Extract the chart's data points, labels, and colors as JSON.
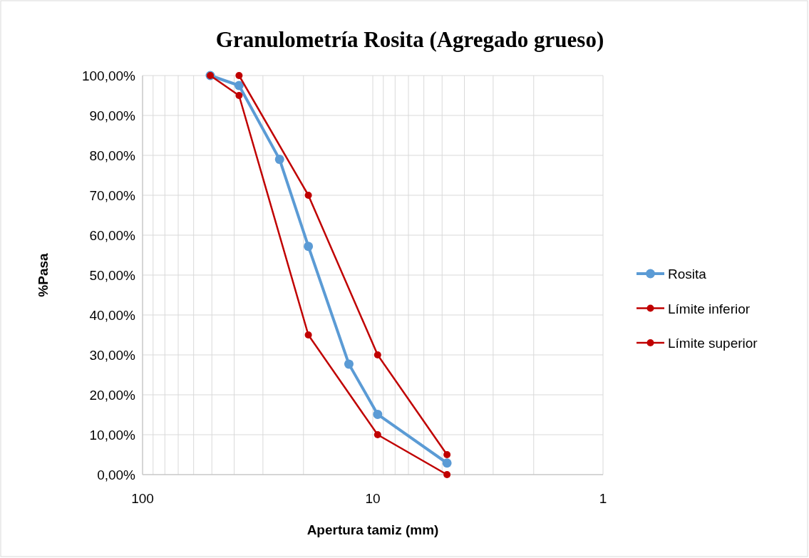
{
  "chart_data": {
    "type": "line",
    "title": "Granulometría Rosita (Agregado grueso)",
    "xlabel": "Apertura tamiz (mm)",
    "ylabel": "%Pasa",
    "log": "x",
    "xlim": [
      100,
      1
    ],
    "xticks": [
      100,
      {
        "value": 90,
        "label": null
      },
      {
        "value": 80,
        "label": null
      },
      {
        "value": 70,
        "label": null
      },
      {
        "value": 60,
        "label": null
      },
      {
        "value": 50,
        "label": null
      },
      {
        "value": 40,
        "label": null
      },
      {
        "value": 30,
        "label": null
      },
      {
        "value": 20,
        "label": null
      },
      10,
      {
        "value": 9,
        "label": null
      },
      {
        "value": 8,
        "label": null
      },
      {
        "value": 7,
        "label": null
      },
      {
        "value": 6,
        "label": null
      },
      {
        "value": 5,
        "label": null
      },
      {
        "value": 4,
        "label": null
      },
      {
        "value": 3,
        "label": null
      },
      {
        "value": 2,
        "label": null
      },
      1
    ],
    "ylim": [
      0,
      100
    ],
    "yticks": [
      {
        "value": 0,
        "label": "0,00%"
      },
      {
        "value": 10,
        "label": "10,00%"
      },
      {
        "value": 20,
        "label": "20,00%"
      },
      {
        "value": 30,
        "label": "30,00%"
      },
      {
        "value": 40,
        "label": "40,00%"
      },
      {
        "value": 50,
        "label": "50,00%"
      },
      {
        "value": 60,
        "label": "60,00%"
      },
      {
        "value": 70,
        "label": "70,00%"
      },
      {
        "value": 80,
        "label": "80,00%"
      },
      {
        "value": 90,
        "label": "90,00%"
      },
      {
        "value": 100,
        "label": "100,00%"
      }
    ],
    "grid": true,
    "legend": "right",
    "marker": "circle",
    "line_style": "solid",
    "series": [
      {
        "name": "Rosita",
        "color": "#5b9bd5",
        "x": [
          50.8,
          38.1,
          25.4,
          19.05,
          12.7,
          9.525,
          4.76
        ],
        "values": [
          100,
          97.5,
          79,
          57.2,
          27.7,
          15.1,
          2.9
        ]
      },
      {
        "name": "Límite inferior",
        "color": "#c00000",
        "x": [
          50.8,
          38.1,
          19.05,
          9.525,
          4.76
        ],
        "values": [
          100,
          95,
          35,
          10,
          0
        ]
      },
      {
        "name": "Límite superior",
        "color": "#c00000",
        "x": [
          38.1,
          19.05,
          9.525,
          4.76
        ],
        "values": [
          100,
          70,
          30,
          5
        ]
      }
    ]
  }
}
